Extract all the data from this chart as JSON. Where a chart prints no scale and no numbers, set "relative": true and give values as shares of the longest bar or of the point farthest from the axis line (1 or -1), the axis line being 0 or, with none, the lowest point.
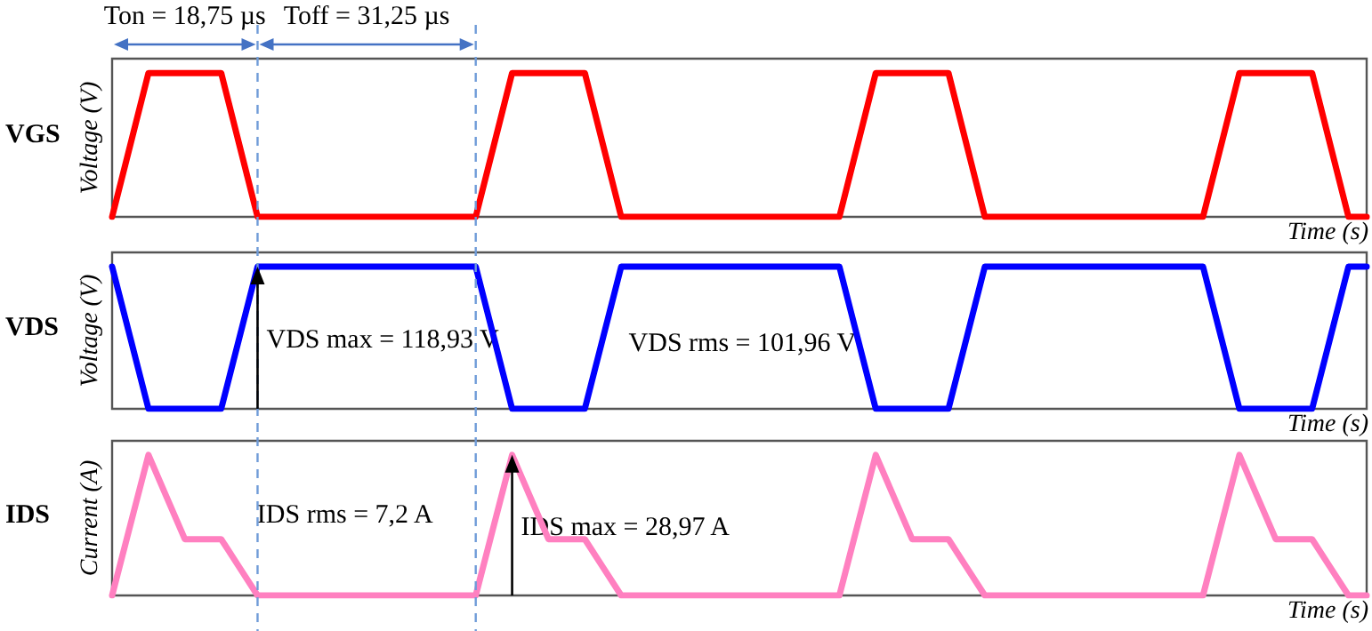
{
  "chart_data": [
    {
      "type": "line",
      "title": "VGS",
      "ylabel": "Voltage (V)",
      "xlabel": "Time (s)",
      "relative": true,
      "marker": "none",
      "categories": [
        null,
        null,
        null,
        null,
        null,
        null,
        null,
        null,
        null,
        null,
        null,
        null,
        null,
        null,
        null,
        null,
        null,
        null,
        null,
        null,
        null,
        null,
        null,
        null,
        null,
        null,
        null,
        null,
        null,
        null,
        null,
        null,
        null,
        null,
        null,
        null,
        null,
        null,
        null,
        null,
        null,
        null,
        null,
        null,
        null,
        null,
        null,
        null,
        null,
        null,
        null,
        null,
        null,
        null,
        null,
        null,
        null,
        null,
        null,
        null,
        null,
        null,
        null,
        null,
        null,
        null,
        null,
        null,
        null,
        null
      ],
      "series": [
        {
          "color": "#ff0000",
          "values": [
            0,
            0.5,
            1,
            1,
            1,
            1,
            1,
            0.5,
            0,
            0,
            0,
            0,
            0,
            0,
            0,
            0,
            0,
            0,
            0,
            0,
            0,
            0.5,
            1,
            1,
            1,
            1,
            1,
            0.5,
            0,
            0,
            0,
            0,
            0,
            0,
            0,
            0,
            0,
            0,
            0,
            0,
            0,
            0.5,
            1,
            1,
            1,
            1,
            1,
            0.5,
            0,
            0,
            0,
            0,
            0,
            0,
            0,
            0,
            0,
            0,
            0,
            0,
            0,
            0.5,
            1,
            1,
            1,
            1,
            1,
            0.5,
            0,
            0
          ]
        }
      ],
      "annotations": [
        "Ton = 18,75 µs",
        "Toff = 31,25 µs"
      ]
    },
    {
      "type": "line",
      "title": "VDS",
      "ylabel": "Voltage (V)",
      "xlabel": "Time (s)",
      "relative": true,
      "marker": "none",
      "categories": [
        null,
        null,
        null,
        null,
        null,
        null,
        null,
        null,
        null,
        null,
        null,
        null,
        null,
        null,
        null,
        null,
        null,
        null,
        null,
        null,
        null,
        null,
        null,
        null,
        null,
        null,
        null,
        null,
        null,
        null,
        null,
        null,
        null,
        null,
        null,
        null,
        null,
        null,
        null,
        null,
        null,
        null,
        null,
        null,
        null,
        null,
        null,
        null,
        null,
        null,
        null,
        null,
        null,
        null,
        null,
        null,
        null,
        null,
        null,
        null,
        null,
        null,
        null,
        null,
        null,
        null,
        null,
        null,
        null,
        null
      ],
      "series": [
        {
          "color": "#0000ff",
          "values": [
            1,
            0.5,
            0,
            0,
            0,
            0,
            0,
            0.5,
            1,
            1,
            1,
            1,
            1,
            1,
            1,
            1,
            1,
            1,
            1,
            1,
            1,
            0.5,
            0,
            0,
            0,
            0,
            0,
            0.5,
            1,
            1,
            1,
            1,
            1,
            1,
            1,
            1,
            1,
            1,
            1,
            1,
            1,
            0.5,
            0,
            0,
            0,
            0,
            0,
            0.5,
            1,
            1,
            1,
            1,
            1,
            1,
            1,
            1,
            1,
            1,
            1,
            1,
            1,
            0.5,
            0,
            0,
            0,
            0,
            0,
            0.5,
            1,
            1
          ]
        }
      ],
      "annotations": [
        "VDS max = 118,93 V",
        "VDS rms = 101,96 V"
      ]
    },
    {
      "type": "line",
      "title": "IDS",
      "ylabel": "Current (A)",
      "xlabel": "Time (s)",
      "relative": true,
      "marker": "none",
      "categories": [
        null,
        null,
        null,
        null,
        null,
        null,
        null,
        null,
        null,
        null,
        null,
        null,
        null,
        null,
        null,
        null,
        null,
        null,
        null,
        null,
        null,
        null,
        null,
        null,
        null,
        null,
        null,
        null,
        null,
        null,
        null,
        null,
        null,
        null,
        null,
        null,
        null,
        null,
        null,
        null,
        null,
        null,
        null,
        null,
        null,
        null,
        null,
        null,
        null,
        null,
        null,
        null,
        null,
        null,
        null,
        null,
        null,
        null,
        null,
        null,
        null,
        null,
        null,
        null,
        null,
        null,
        null,
        null,
        null,
        null
      ],
      "series": [
        {
          "color": "#ff80c0",
          "values": [
            0,
            0.5,
            1,
            0.7,
            0.4,
            0.4,
            0.4,
            0.2,
            0,
            0,
            0,
            0,
            0,
            0,
            0,
            0,
            0,
            0,
            0,
            0,
            0,
            0.5,
            1,
            0.7,
            0.4,
            0.4,
            0.4,
            0.2,
            0,
            0,
            0,
            0,
            0,
            0,
            0,
            0,
            0,
            0,
            0,
            0,
            0,
            0.5,
            1,
            0.7,
            0.4,
            0.4,
            0.4,
            0.2,
            0,
            0,
            0,
            0,
            0,
            0,
            0,
            0,
            0,
            0,
            0,
            0,
            0,
            0.5,
            1,
            0.7,
            0.4,
            0.4,
            0.4,
            0.2,
            0,
            0
          ]
        }
      ],
      "annotations": [
        "IDS rms = 7,2 A",
        "IDS max = 28,97 A"
      ]
    }
  ]
}
